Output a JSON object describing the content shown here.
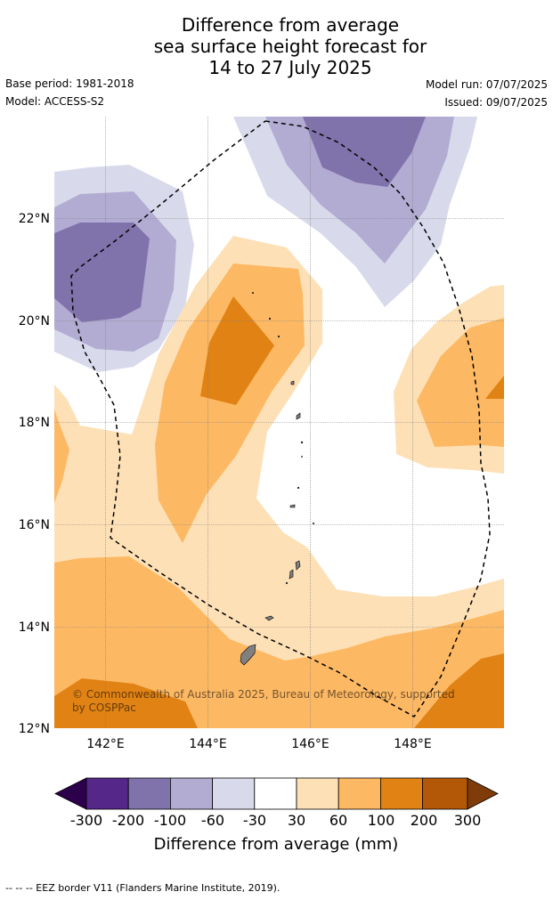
{
  "title": {
    "line1": "Difference from average",
    "line2": "sea surface height forecast for",
    "line3": "14 to 27 July 2025"
  },
  "meta": {
    "base_period": "Base period: 1981-2018",
    "model": "Model: ACCESS-S2",
    "model_run": "Model run: 07/07/2025",
    "issued": "Issued: 09/07/2025"
  },
  "map": {
    "latitude_labels": [
      "22°N",
      "20°N",
      "18°N",
      "16°N",
      "14°N",
      "12°N"
    ],
    "longitude_labels": [
      "142°E",
      "144°E",
      "146°E",
      "148°E"
    ],
    "copyright_line1": "© Commonwealth of Australia 2025, Bureau of Meteorology, supported",
    "copyright_line2": "by COSPPac"
  },
  "colorbar": {
    "ticks": [
      "-300",
      "-200",
      "-100",
      "-60",
      "-30",
      "30",
      "60",
      "100",
      "200",
      "300"
    ],
    "title": "Difference from average (mm)",
    "colors": {
      "below_-300": "#2d004b",
      "-300_-200": "#542788",
      "-200_-100": "#8073ac",
      "-100_-60": "#b2abd2",
      "-60_-30": "#d8daeb",
      "-30_30": "#ffffff",
      "30_60": "#fee0b6",
      "60_100": "#fdb863",
      "100_200": "#e08214",
      "200_300": "#b35806",
      "above_300": "#7f3b08"
    }
  },
  "footer": {
    "eez_legend": "--  --  -- EEZ border V11 (Flanders Marine Institute, 2019)."
  }
}
